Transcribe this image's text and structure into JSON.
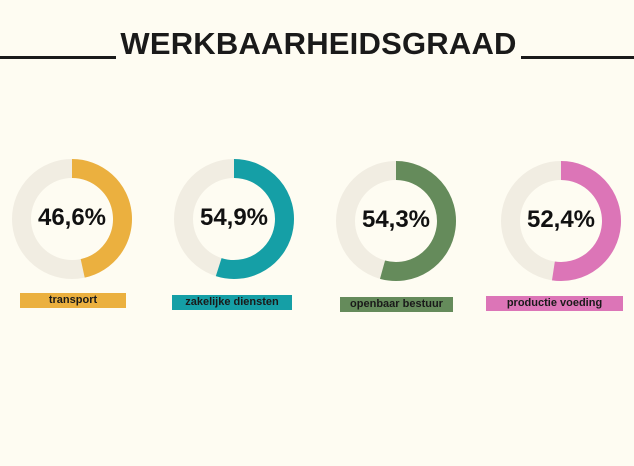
{
  "title": "WERKBAARHEIDSGRAAD",
  "colors": {
    "background": "#fefcf2",
    "track": "#f1ede2",
    "text": "#1a1a1a"
  },
  "chart_data": {
    "type": "pie",
    "variant": "donut",
    "title": "WERKBAARHEIDSGRAAD",
    "categories": [
      "transport",
      "zakelijke diensten",
      "openbaar bestuur",
      "productie voeding"
    ],
    "values": [
      46.6,
      54.9,
      54.3,
      52.4
    ],
    "value_labels": [
      "46,6%",
      "54,9%",
      "54,3%",
      "52,4%"
    ],
    "unit": "%",
    "max": 100,
    "colors": [
      "#ebb03f",
      "#159fa6",
      "#658b5b",
      "#dc75b7"
    ]
  }
}
